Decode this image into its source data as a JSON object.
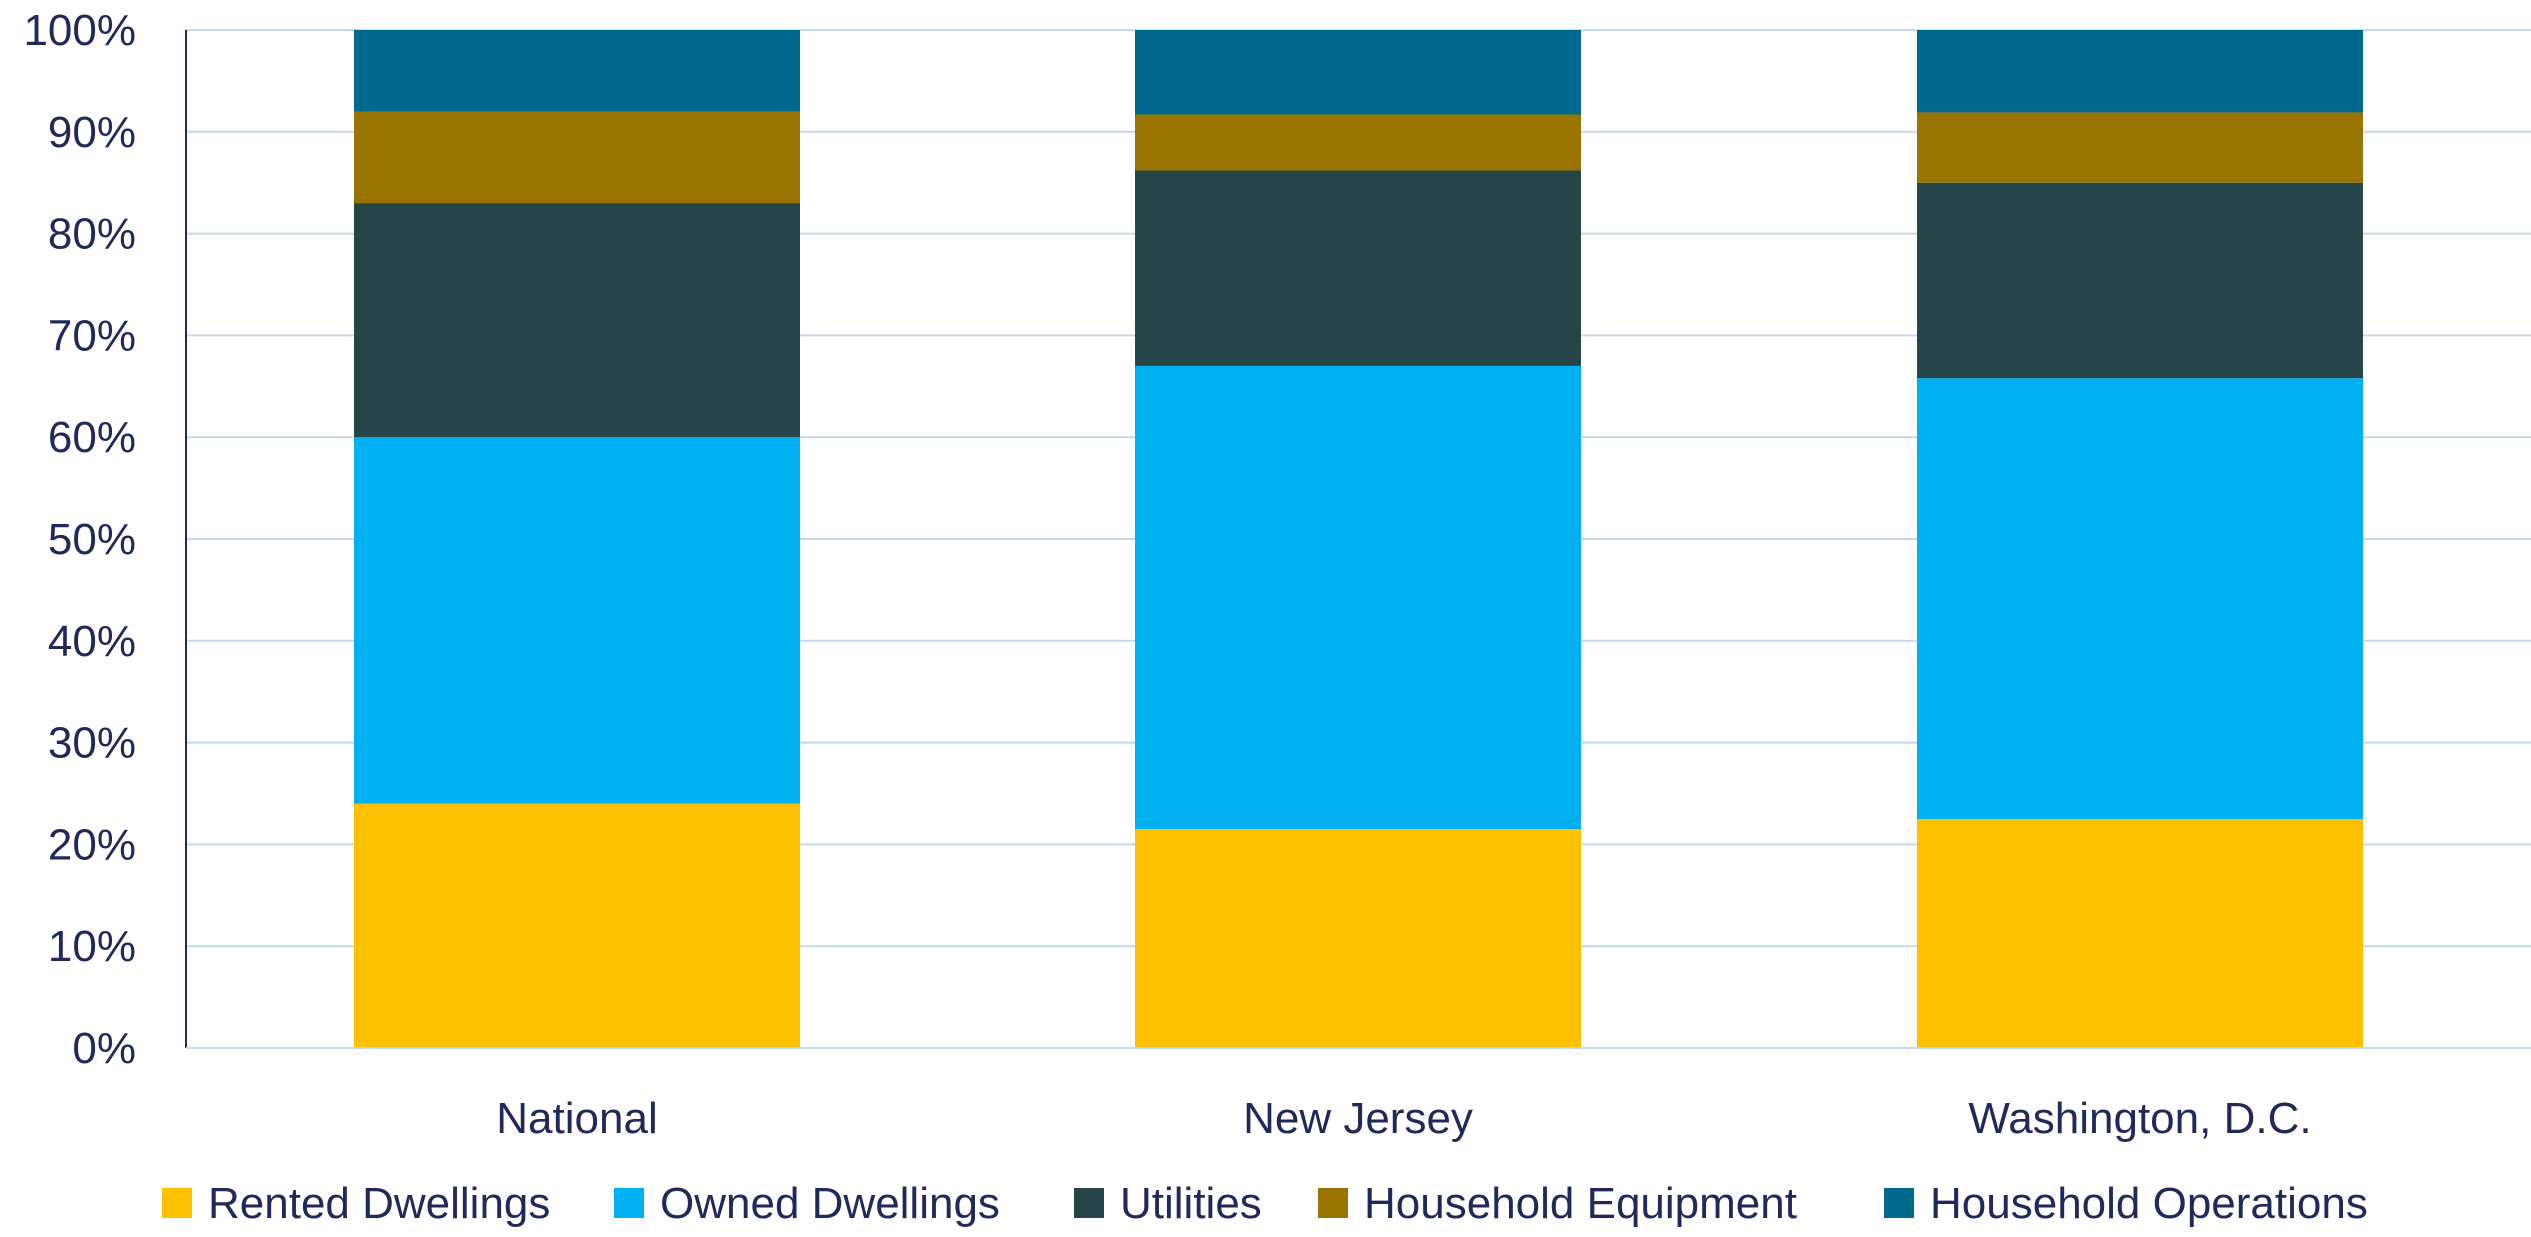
{
  "chart_data": {
    "type": "bar",
    "stacked": true,
    "title": "",
    "xlabel": "",
    "ylabel": "",
    "ylim": [
      0,
      100
    ],
    "yticks": [
      "0%",
      "10%",
      "20%",
      "30%",
      "40%",
      "50%",
      "60%",
      "70%",
      "80%",
      "90%",
      "100%"
    ],
    "grid": true,
    "legend_position": "bottom",
    "categories": [
      "National",
      "New Jersey",
      "Washington, D.C."
    ],
    "series": [
      {
        "name": "Rented Dwellings",
        "color": "#FFC000",
        "values": [
          24,
          21.5,
          22.5
        ]
      },
      {
        "name": "Owned Dwellings",
        "color": "#00B0F0",
        "values": [
          36,
          45.5,
          43.3
        ]
      },
      {
        "name": "Utilities",
        "color": "#264548",
        "values": [
          23,
          19.2,
          19.2
        ]
      },
      {
        "name": "Household Equipment",
        "color": "#9A7400",
        "values": [
          9,
          5.5,
          6.9
        ]
      },
      {
        "name": "Household Operations",
        "color": "#006A8E",
        "values": [
          8,
          8.3,
          8.1
        ]
      }
    ],
    "colors": {
      "text": "#1F2A5A",
      "grid": "#C9D7EA",
      "axis": "#1F2A5A"
    }
  }
}
